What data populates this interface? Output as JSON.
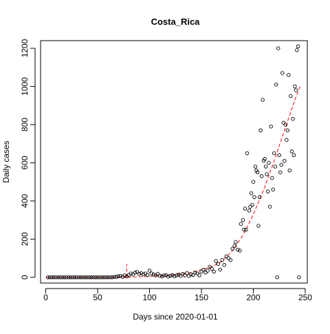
{
  "chart_data": {
    "type": "scatter",
    "title": "Costa_Rica",
    "xlabel": "Days since 2020-01-01",
    "ylabel": "Daily cases",
    "xlim": [
      -5,
      252
    ],
    "ylim": [
      -30,
      1240
    ],
    "xticks": [
      "0",
      "50",
      "100",
      "150",
      "200",
      "250"
    ],
    "yticks": [
      "0",
      "200",
      "400",
      "600",
      "800",
      "1000",
      "1200"
    ],
    "xtick_values": [
      0,
      50,
      100,
      150,
      200,
      250
    ],
    "ytick_values": [
      0,
      200,
      400,
      600,
      800,
      1000,
      1200
    ],
    "grid": false,
    "colors": {
      "points": "#000000",
      "fit": "#ff0000",
      "axis": "#000000"
    },
    "points": {
      "x": [
        2,
        4,
        6,
        8,
        10,
        12,
        14,
        16,
        18,
        20,
        22,
        24,
        26,
        28,
        30,
        32,
        34,
        36,
        38,
        40,
        42,
        44,
        46,
        48,
        50,
        52,
        54,
        56,
        58,
        60,
        62,
        64,
        66,
        68,
        70,
        72,
        74,
        76,
        78,
        80,
        82,
        84,
        86,
        88,
        90,
        92,
        94,
        96,
        98,
        100,
        102,
        104,
        106,
        108,
        110,
        112,
        114,
        116,
        118,
        120,
        122,
        124,
        126,
        128,
        130,
        132,
        134,
        136,
        138,
        140,
        142,
        144,
        146,
        148,
        150,
        152,
        154,
        156,
        158,
        160,
        162,
        164,
        166,
        168,
        170,
        172,
        174,
        176,
        178,
        180,
        182,
        183,
        185,
        187,
        188,
        190,
        191,
        192,
        193,
        194,
        196,
        197,
        198,
        199,
        200,
        201,
        202,
        203,
        204,
        205,
        206,
        207,
        208,
        209,
        210,
        211,
        212,
        213,
        214,
        215,
        216,
        217,
        218,
        219,
        220,
        221,
        222,
        223,
        224,
        225,
        226,
        227,
        228,
        229,
        230,
        231,
        232,
        233,
        234,
        235,
        236,
        237,
        238,
        239,
        240,
        241,
        242,
        243,
        244
      ],
      "y": [
        0,
        0,
        0,
        0,
        0,
        0,
        0,
        0,
        0,
        0,
        0,
        0,
        0,
        0,
        0,
        0,
        0,
        0,
        0,
        0,
        0,
        0,
        0,
        0,
        0,
        0,
        0,
        0,
        0,
        0,
        0,
        0,
        2,
        3,
        5,
        8,
        2,
        10,
        5,
        12,
        20,
        15,
        25,
        28,
        18,
        22,
        15,
        20,
        12,
        35,
        20,
        14,
        10,
        18,
        8,
        5,
        10,
        12,
        4,
        8,
        12,
        6,
        10,
        14,
        8,
        18,
        10,
        22,
        8,
        15,
        12,
        25,
        20,
        10,
        30,
        40,
        25,
        35,
        55,
        45,
        30,
        85,
        70,
        40,
        90,
        65,
        110,
        100,
        90,
        150,
        165,
        185,
        145,
        140,
        280,
        300,
        250,
        360,
        250,
        650,
        350,
        370,
        440,
        380,
        500,
        420,
        580,
        560,
        550,
        270,
        420,
        770,
        530,
        930,
        610,
        620,
        580,
        540,
        450,
        600,
        370,
        790,
        520,
        460,
        650,
        580,
        1010,
        0,
        1200,
        640,
        550,
        590,
        1070,
        810,
        610,
        800,
        720,
        770,
        1060,
        560,
        950,
        660,
        830,
        640,
        1000,
        980,
        1190,
        1210,
        0
      ]
    },
    "fit_curve": {
      "segments": [
        {
          "x": [
            0,
            78
          ],
          "y": [
            0,
            0
          ]
        },
        {
          "x": [
            78,
            78
          ],
          "y": [
            0,
            70
          ]
        },
        {
          "x": [
            79,
            100,
            120,
            140,
            160,
            170,
            180,
            190,
            200,
            210,
            220,
            230,
            240,
            245
          ],
          "y": [
            0,
            5,
            12,
            25,
            55,
            85,
            140,
            220,
            330,
            460,
            610,
            770,
            930,
            1000
          ]
        }
      ]
    }
  }
}
